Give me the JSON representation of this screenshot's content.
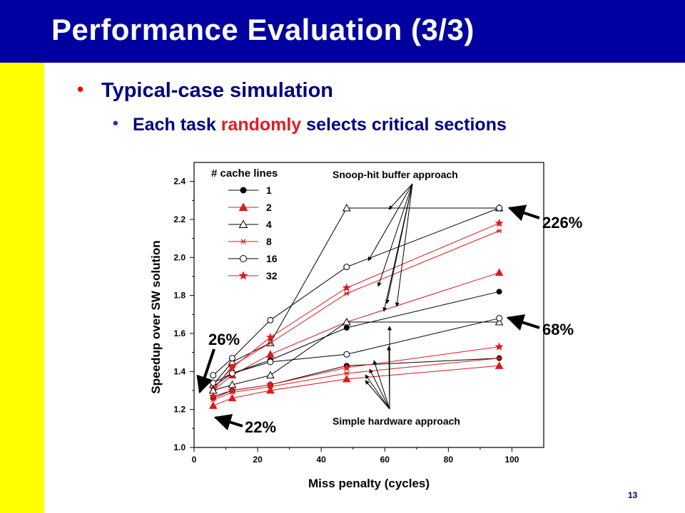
{
  "slide": {
    "title": "Performance Evaluation (3/3)",
    "bullet1": "Typical-case simulation",
    "bullet2_pre": "Each task ",
    "bullet2_highlight": "randomly",
    "bullet2_post": " selects critical sections",
    "slide_number": "13",
    "colors": {
      "title_bar": "#0000a0",
      "left_bar": "#ffff00",
      "highlight": "#e31b23"
    }
  },
  "chart_data": {
    "type": "line",
    "xlabel": "Miss penalty (cycles)",
    "ylabel": "Speedup over SW solution",
    "xlim": [
      0,
      110
    ],
    "ylim": [
      1.0,
      2.5
    ],
    "xticks": [
      0,
      20,
      40,
      60,
      80,
      100
    ],
    "yticks": [
      1.0,
      1.2,
      1.4,
      1.6,
      1.8,
      2.0,
      2.2,
      2.4
    ],
    "legend_title": "# cache lines",
    "legend_position": "top-left",
    "x": [
      6,
      12,
      24,
      48,
      96
    ],
    "series": [
      {
        "group": "snoop",
        "name": "1",
        "color": "#000000",
        "marker": "circle-filled",
        "values": [
          1.32,
          1.39,
          1.46,
          1.63,
          1.82
        ]
      },
      {
        "group": "snoop",
        "name": "2",
        "color": "#e0181c",
        "marker": "triangle-filled",
        "values": [
          1.3,
          1.38,
          1.49,
          1.66,
          1.92
        ]
      },
      {
        "group": "snoop",
        "name": "4",
        "color": "#000000",
        "marker": "triangle-open",
        "values": [
          1.33,
          1.45,
          1.55,
          2.26,
          2.26
        ]
      },
      {
        "group": "snoop",
        "name": "8",
        "color": "#e0181c",
        "marker": "asterisk",
        "values": [
          1.3,
          1.43,
          1.55,
          1.81,
          2.14
        ]
      },
      {
        "group": "snoop",
        "name": "16",
        "color": "#000000",
        "marker": "circle-open",
        "values": [
          1.38,
          1.47,
          1.67,
          1.95,
          2.26
        ]
      },
      {
        "group": "snoop",
        "name": "32",
        "color": "#e0181c",
        "marker": "star",
        "values": [
          1.31,
          1.42,
          1.58,
          1.84,
          2.18
        ]
      },
      {
        "group": "simple",
        "name": "1",
        "color": "#000000",
        "marker": "circle-filled",
        "values": [
          1.26,
          1.3,
          1.33,
          1.43,
          1.47
        ]
      },
      {
        "group": "simple",
        "name": "2",
        "color": "#e0181c",
        "marker": "triangle-filled",
        "values": [
          1.22,
          1.26,
          1.3,
          1.36,
          1.43
        ]
      },
      {
        "group": "simple",
        "name": "4",
        "color": "#000000",
        "marker": "triangle-open",
        "values": [
          1.3,
          1.33,
          1.38,
          1.66,
          1.66
        ]
      },
      {
        "group": "simple",
        "name": "8",
        "color": "#e0181c",
        "marker": "asterisk",
        "values": [
          1.25,
          1.29,
          1.32,
          1.39,
          1.47
        ]
      },
      {
        "group": "simple",
        "name": "16",
        "color": "#000000",
        "marker": "circle-open",
        "values": [
          1.34,
          1.39,
          1.45,
          1.49,
          1.68
        ]
      },
      {
        "group": "simple",
        "name": "32",
        "color": "#e0181c",
        "marker": "star",
        "values": [
          1.27,
          1.3,
          1.33,
          1.42,
          1.53
        ]
      }
    ],
    "annotations": {
      "snoop_label": "Snoop-hit buffer approach",
      "simple_label": "Simple hardware approach",
      "pct_226": "226%",
      "pct_68": "68%",
      "pct_26": "26%",
      "pct_22": "22%"
    }
  }
}
